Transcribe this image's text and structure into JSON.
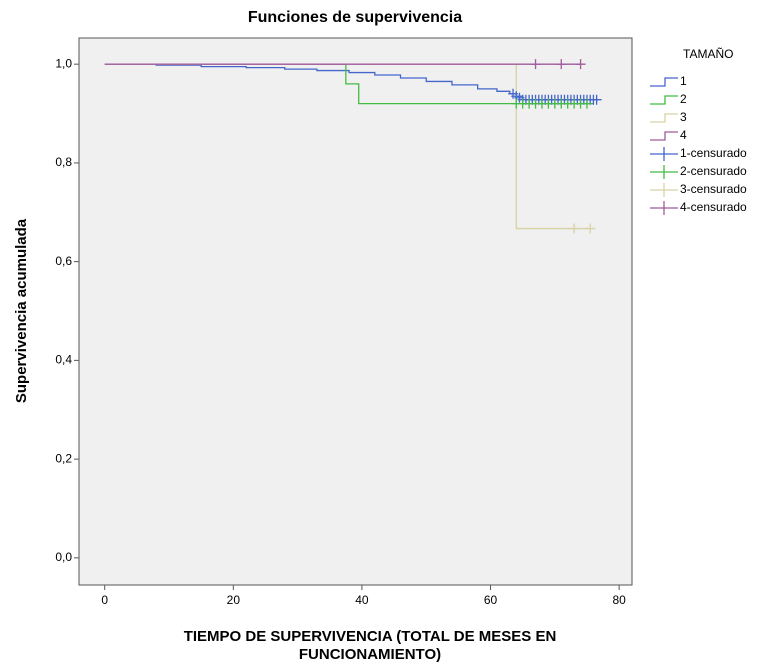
{
  "chart_data": {
    "type": "survival",
    "title": "Funciones de supervivencia",
    "y_label": "Supervivencia acumulada",
    "x_label": [
      "TIEMPO DE SUPERVIVENCIA (TOTAL DE MESES EN",
      "FUNCIONAMIENTO)"
    ],
    "legend_title": "TAMAÑO",
    "xlim": [
      -4,
      82
    ],
    "xticks": [
      0,
      20,
      40,
      60,
      80
    ],
    "ylim": [
      -0.055,
      1.053
    ],
    "yticks": [
      {
        "value": 0,
        "label": "0,0"
      },
      {
        "value": 0.2,
        "label": "0,2"
      },
      {
        "value": 0.4,
        "label": "0,4"
      },
      {
        "value": 0.6,
        "label": "0,6"
      },
      {
        "value": 0.8,
        "label": "0,8"
      },
      {
        "value": 1,
        "label": "1,0"
      }
    ],
    "series": [
      {
        "name": "1",
        "color": "#4466cc",
        "marker": "step",
        "x": [
          0,
          8,
          15,
          22,
          28,
          33,
          38,
          42,
          46,
          50,
          54,
          58,
          61,
          63,
          64,
          65,
          76
        ],
        "values": [
          1,
          0.998,
          0.995,
          0.993,
          0.99,
          0.987,
          0.983,
          0.978,
          0.972,
          0.965,
          0.958,
          0.95,
          0.945,
          0.94,
          0.935,
          0.928,
          0.928
        ]
      },
      {
        "name": "2",
        "color": "#44bb44",
        "marker": "step",
        "x": [
          0,
          37.5,
          39.5,
          76
        ],
        "values": [
          1,
          0.96,
          0.92,
          0.92
        ]
      },
      {
        "name": "3",
        "color": "#d8d2a4",
        "marker": "step",
        "x": [
          0,
          64,
          75.5
        ],
        "values": [
          1,
          0.667,
          0.667
        ]
      },
      {
        "name": "4",
        "color": "#a05a9c",
        "marker": "step",
        "x": [
          0,
          74
        ],
        "values": [
          1,
          1
        ]
      },
      {
        "name": "1-censurado",
        "color": "#4466cc",
        "marker": "plus",
        "x": [
          63.5,
          64,
          64.5,
          65,
          65.5,
          66,
          66.5,
          67,
          67.5,
          68,
          68.5,
          69,
          69.5,
          70,
          70.5,
          71,
          71.5,
          72,
          72.5,
          73,
          73.5,
          74,
          74.5,
          75,
          75.5,
          76,
          76.5
        ],
        "values": [
          0.94,
          0.935,
          0.932,
          0.928,
          0.928,
          0.928,
          0.928,
          0.928,
          0.928,
          0.928,
          0.928,
          0.928,
          0.928,
          0.928,
          0.928,
          0.928,
          0.928,
          0.928,
          0.928,
          0.928,
          0.928,
          0.928,
          0.928,
          0.928,
          0.928,
          0.928,
          0.928
        ]
      },
      {
        "name": "2-censurado",
        "color": "#44bb44",
        "marker": "plus",
        "x": [
          64,
          65,
          66,
          67,
          68,
          69,
          70,
          71,
          72,
          73,
          74,
          75
        ],
        "values": [
          0.92,
          0.92,
          0.92,
          0.92,
          0.92,
          0.92,
          0.92,
          0.92,
          0.92,
          0.92,
          0.92,
          0.92
        ]
      },
      {
        "name": "3-censurado",
        "color": "#d8d2a4",
        "marker": "plus",
        "x": [
          73,
          75.5
        ],
        "values": [
          0.667,
          0.667
        ]
      },
      {
        "name": "4-censurado",
        "color": "#a05a9c",
        "marker": "plus",
        "x": [
          67,
          71,
          74
        ],
        "values": [
          1,
          1,
          1
        ]
      }
    ]
  }
}
